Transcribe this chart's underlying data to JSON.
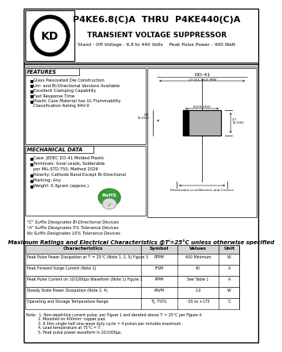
{
  "title_line1": "P4KE6.8(C)A  THRU  P4KE440(C)A",
  "title_line2": "TRANSIENT VOLTAGE SUPPRESSOR",
  "title_line3": "Stand - Off Voltage - 6.8 to 440 Volts    Peak Pulse Power - 400 Watt",
  "features_title": "FEATURES",
  "features": [
    "Glass Passivated Die Construction",
    "Uni- and Bi-Directional Versions Available",
    "Excellent Clamping Capability",
    "Fast Response Time",
    "Plastic Case Material has UL Flammability",
    "  Classification Rating 94V-0"
  ],
  "mech_title": "MECHANICAL DATA",
  "mech": [
    "Case: JEDEC DO-41 Molded Plastic",
    "Terminals: Axial Leads, Solderable",
    "  per MIL-STD-750, Method 2026",
    "Polarity: Cathode Band Except Bi-Directional",
    "Marking: Any",
    "Weight: 0.3gram (approx.)"
  ],
  "suffix_notes": [
    "\"C\" Suffix Designates Bi-Directional Devices",
    "\"A\" Suffix Designates 5% Tolerance Devices",
    "No Suffix Designates 10% Tolerance Devices"
  ],
  "table_title": "Maximum Ratings and Electrical Characteristics @Tⁱ=25°C unless otherwise specified",
  "table_headers": [
    "Characteristics",
    "Symbol",
    "Values",
    "Unit"
  ],
  "table_rows": [
    [
      "Peak Pulse Power Dissipation at Tⁱ = 25°C (Note 1, 2, 5) Figure 3",
      "PPPM",
      "400 Minimum",
      "W"
    ],
    [
      "Peak Forward Surge Current (Note 2)",
      "IFSM",
      "40",
      "A"
    ],
    [
      "Peak Pulse Current on 10/1000μs Waveform (Note 1) Figure 1",
      "IPPM",
      "See Table 1",
      "A"
    ],
    [
      "Steady State Power Dissipation (Note 2, 4)",
      "PAVM",
      "1.0",
      "W"
    ],
    [
      "Operating and Storage Temperature Range",
      "TJ, TSTG",
      "-55 to +175",
      "°C"
    ]
  ],
  "notes": [
    "Note:  1. Non-repetitive current pulse, per Figure 1 and derated above Tⁱ = 25°C per Figure 4.",
    "          2. Mounted on 400mm² copper pad.",
    "          3. 8.3ms single half sine-wave duty cycle = 4 pulses per minutes maximum.",
    "          4. Lead temperature at 75°C = Tⁱ.",
    "          5. Peak pulse power waveform is 10/1000μs."
  ],
  "bg_color": "#ffffff"
}
